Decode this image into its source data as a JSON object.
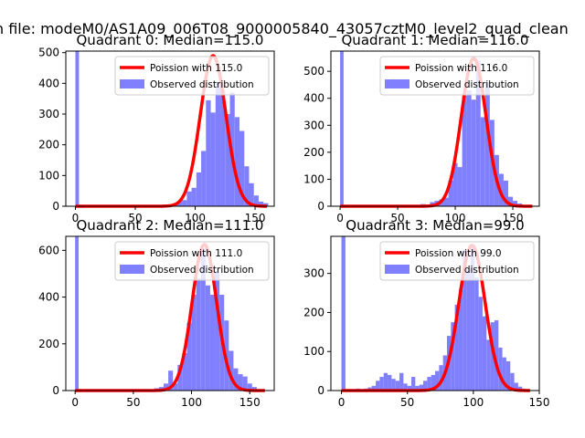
{
  "figure": {
    "suptitle": "n file: modeM0/AS1A09_006T08_9000005840_43057cztM0_level2_quad_clean"
  },
  "colors": {
    "hist": "#8080ff",
    "fit": "#ff0000",
    "axes": "#000000",
    "background": "#ffffff"
  },
  "chart_data": [
    {
      "type": "bar",
      "title": "Quadrant 0: Median=115.0",
      "xlim": [
        -8,
        166
      ],
      "ylim": [
        0,
        505
      ],
      "xticks": [
        0,
        50,
        100,
        150
      ],
      "yticks": [
        0,
        100,
        200,
        300,
        400,
        500
      ],
      "legend_position": "top-right",
      "legend": [
        "Poission with 115.0",
        "Observed distribution"
      ],
      "fit": {
        "name": "Poission with 115.0",
        "mu": 115.0,
        "peak": 490,
        "xmin": 0,
        "xmax": 160
      },
      "histogram": {
        "name": "Observed distribution",
        "bins": [
          [
            0,
            3,
            505
          ],
          [
            65,
            69,
            2
          ],
          [
            69,
            73,
            3
          ],
          [
            73,
            77,
            5
          ],
          [
            77,
            81,
            4
          ],
          [
            81,
            85,
            8
          ],
          [
            85,
            89,
            15
          ],
          [
            89,
            93,
            20
          ],
          [
            93,
            97,
            48
          ],
          [
            97,
            101,
            60
          ],
          [
            101,
            105,
            110
          ],
          [
            105,
            109,
            180
          ],
          [
            109,
            113,
            345
          ],
          [
            113,
            117,
            305
          ],
          [
            117,
            121,
            405
          ],
          [
            121,
            125,
            380
          ],
          [
            125,
            129,
            300
          ],
          [
            129,
            133,
            370
          ],
          [
            133,
            137,
            290
          ],
          [
            137,
            141,
            245
          ],
          [
            141,
            145,
            130
          ],
          [
            145,
            149,
            75
          ],
          [
            149,
            153,
            35
          ],
          [
            153,
            157,
            15
          ],
          [
            157,
            161,
            10
          ]
        ]
      }
    },
    {
      "type": "bar",
      "title": "Quadrant 1: Median=116.0",
      "xlim": [
        -8,
        173
      ],
      "ylim": [
        0,
        575
      ],
      "xticks": [
        0,
        50,
        100,
        150
      ],
      "yticks": [
        0,
        100,
        200,
        300,
        400,
        500
      ],
      "legend_position": "top-right",
      "legend": [
        "Poission with 116.0",
        "Observed distribution"
      ],
      "fit": {
        "name": "Poission with 116.0",
        "mu": 116.0,
        "peak": 548,
        "xmin": 0,
        "xmax": 167
      },
      "histogram": {
        "name": "Observed distribution",
        "bins": [
          [
            0,
            3,
            575
          ],
          [
            70,
            74,
            8
          ],
          [
            74,
            78,
            6
          ],
          [
            78,
            82,
            15
          ],
          [
            82,
            86,
            20
          ],
          [
            86,
            90,
            25
          ],
          [
            90,
            94,
            32
          ],
          [
            94,
            98,
            95
          ],
          [
            98,
            102,
            160
          ],
          [
            102,
            106,
            145
          ],
          [
            106,
            110,
            410
          ],
          [
            110,
            114,
            430
          ],
          [
            114,
            118,
            395
          ],
          [
            118,
            122,
            540
          ],
          [
            122,
            126,
            330
          ],
          [
            126,
            130,
            460
          ],
          [
            130,
            134,
            320
          ],
          [
            134,
            138,
            190
          ],
          [
            138,
            142,
            120
          ],
          [
            142,
            146,
            95
          ],
          [
            146,
            150,
            35
          ],
          [
            150,
            154,
            20
          ],
          [
            154,
            158,
            10
          ],
          [
            158,
            162,
            5
          ]
        ]
      }
    },
    {
      "type": "bar",
      "title": "Quadrant 2: Median=111.0",
      "xlim": [
        -8,
        171
      ],
      "ylim": [
        0,
        660
      ],
      "xticks": [
        0,
        50,
        100,
        150
      ],
      "yticks": [
        0,
        200,
        400,
        600
      ],
      "legend_position": "top-right",
      "legend": [
        "Poission with 111.0",
        "Observed distribution"
      ],
      "fit": {
        "name": "Poission with 111.0",
        "mu": 111.0,
        "peak": 625,
        "xmin": 0,
        "xmax": 163
      },
      "histogram": {
        "name": "Observed distribution",
        "bins": [
          [
            0,
            3,
            660
          ],
          [
            68,
            72,
            10
          ],
          [
            72,
            76,
            15
          ],
          [
            76,
            80,
            30
          ],
          [
            80,
            84,
            85
          ],
          [
            84,
            88,
            30
          ],
          [
            88,
            92,
            110
          ],
          [
            92,
            96,
            160
          ],
          [
            96,
            100,
            290
          ],
          [
            100,
            104,
            410
          ],
          [
            104,
            108,
            480
          ],
          [
            108,
            112,
            610
          ],
          [
            112,
            116,
            450
          ],
          [
            116,
            120,
            410
          ],
          [
            120,
            124,
            510
          ],
          [
            124,
            128,
            410
          ],
          [
            128,
            132,
            300
          ],
          [
            132,
            136,
            170
          ],
          [
            136,
            140,
            95
          ],
          [
            140,
            144,
            70
          ],
          [
            144,
            148,
            60
          ],
          [
            148,
            152,
            30
          ],
          [
            152,
            156,
            15
          ],
          [
            156,
            160,
            5
          ]
        ]
      }
    },
    {
      "type": "bar",
      "title": "Quadrant 3: Median=99.0",
      "xlim": [
        -8,
        150
      ],
      "ylim": [
        0,
        395
      ],
      "xticks": [
        0,
        50,
        100,
        150
      ],
      "yticks": [
        0,
        100,
        200,
        300
      ],
      "legend_position": "top-right",
      "legend": [
        "Poission with 99.0",
        "Observed distribution"
      ],
      "fit": {
        "name": "Poission with 99.0",
        "mu": 99.0,
        "peak": 372,
        "xmin": 0,
        "xmax": 143
      },
      "histogram": {
        "name": "Observed distribution",
        "bins": [
          [
            0,
            3,
            395
          ],
          [
            11,
            14,
            5
          ],
          [
            14,
            17,
            3
          ],
          [
            17,
            20,
            5
          ],
          [
            20,
            23,
            8
          ],
          [
            23,
            26,
            12
          ],
          [
            26,
            29,
            25
          ],
          [
            29,
            32,
            35
          ],
          [
            32,
            35,
            45
          ],
          [
            35,
            38,
            40
          ],
          [
            38,
            41,
            30
          ],
          [
            41,
            44,
            25
          ],
          [
            44,
            47,
            45
          ],
          [
            47,
            50,
            18
          ],
          [
            50,
            53,
            12
          ],
          [
            53,
            56,
            35
          ],
          [
            56,
            59,
            12
          ],
          [
            59,
            62,
            15
          ],
          [
            62,
            65,
            25
          ],
          [
            65,
            68,
            35
          ],
          [
            68,
            71,
            40
          ],
          [
            71,
            74,
            50
          ],
          [
            74,
            77,
            65
          ],
          [
            77,
            80,
            90
          ],
          [
            80,
            83,
            140
          ],
          [
            83,
            86,
            175
          ],
          [
            86,
            89,
            220
          ],
          [
            89,
            92,
            260
          ],
          [
            92,
            95,
            360
          ],
          [
            95,
            98,
            310
          ],
          [
            98,
            101,
            370
          ],
          [
            101,
            104,
            290
          ],
          [
            104,
            107,
            240
          ],
          [
            107,
            110,
            190
          ],
          [
            110,
            113,
            130
          ],
          [
            113,
            116,
            175
          ],
          [
            116,
            119,
            180
          ],
          [
            119,
            122,
            110
          ],
          [
            122,
            125,
            85
          ],
          [
            125,
            128,
            75
          ],
          [
            128,
            131,
            45
          ],
          [
            131,
            134,
            20
          ],
          [
            134,
            137,
            10
          ],
          [
            137,
            140,
            5
          ]
        ]
      }
    }
  ]
}
